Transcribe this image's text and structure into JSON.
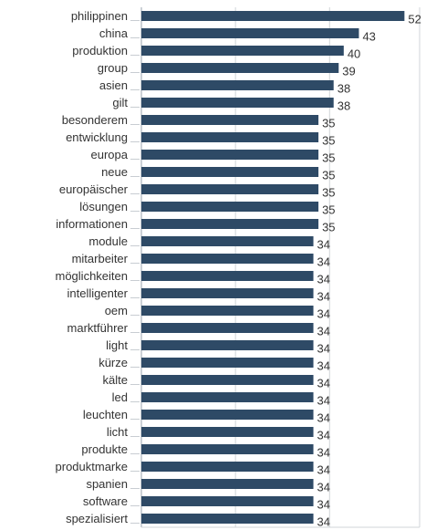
{
  "chart_data": {
    "type": "bar",
    "orientation": "horizontal",
    "title": "",
    "xlabel": "",
    "ylabel": "",
    "xlim": [
      0,
      55
    ],
    "grid": true,
    "bar_color": "#2e4a66",
    "categories": [
      "philippinen",
      "china",
      "produktion",
      "group",
      "asien",
      "gilt",
      "besonderem",
      "entwicklung",
      "europa",
      "neue",
      "europäischer",
      "lösungen",
      "informationen",
      "module",
      "mitarbeiter",
      "möglichkeiten",
      "intelligenter",
      "oem",
      "marktführer",
      "light",
      "kürze",
      "kälte",
      "led",
      "leuchten",
      "licht",
      "produkte",
      "produktmarke",
      "spanien",
      "software",
      "spezialisiert"
    ],
    "values": [
      52,
      43,
      40,
      39,
      38,
      38,
      35,
      35,
      35,
      35,
      35,
      35,
      35,
      34,
      34,
      34,
      34,
      34,
      34,
      34,
      34,
      34,
      34,
      34,
      34,
      34,
      34,
      34,
      34,
      34
    ]
  }
}
